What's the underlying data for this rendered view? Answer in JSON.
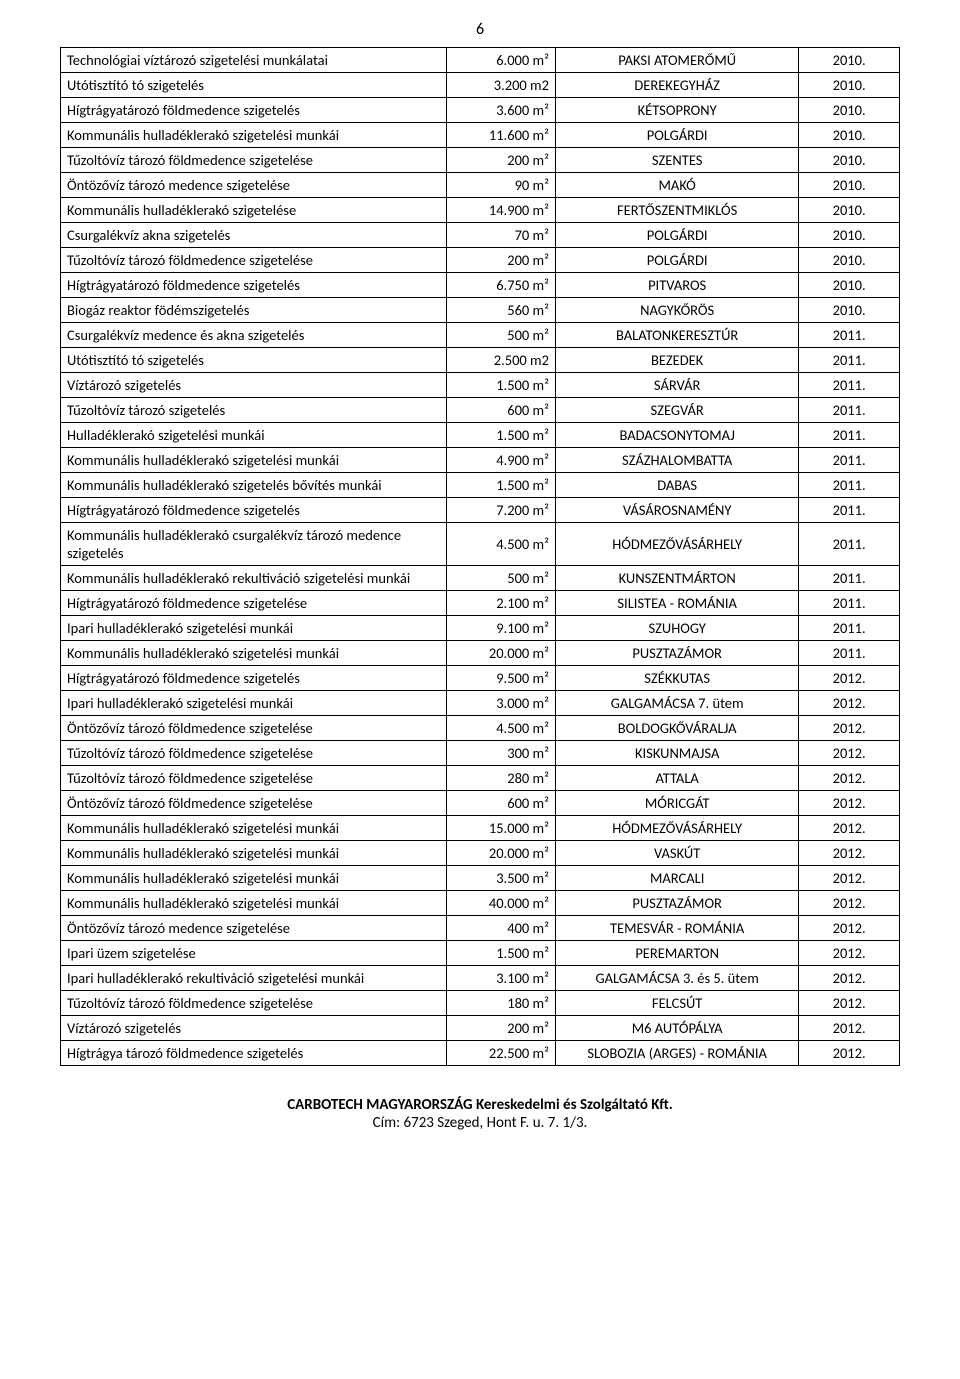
{
  "pageNumber": "6",
  "footer": {
    "line1": "CARBOTECH MAGYARORSZÁG Kereskedelmi és Szolgáltató Kft.",
    "line2": "Cím: 6723 Szeged, Hont F. u. 7. 1/3."
  },
  "rows": [
    {
      "desc": "Technológiai víztározó szigetelési munkálatai",
      "area": "6.000 m²",
      "loc": "PAKSI ATOMERŐMŰ",
      "year": "2010."
    },
    {
      "desc": "Utótisztító tó szigetelés",
      "area": "3.200 m2",
      "loc": "DEREKEGYHÁZ",
      "year": "2010."
    },
    {
      "desc": "Hígtrágyatározó földmedence szigetelés",
      "area": "3.600 m²",
      "loc": "KÉTSOPRONY",
      "year": "2010."
    },
    {
      "desc": "Kommunális hulladéklerakó szigetelési munkái",
      "area": "11.600 m²",
      "loc": "POLGÁRDI",
      "year": "2010."
    },
    {
      "desc": "Tűzoltóvíz tározó földmedence szigetelése",
      "area": "200 m²",
      "loc": "SZENTES",
      "year": "2010."
    },
    {
      "desc": "Öntözővíz tározó medence szigetelése",
      "area": "90 m²",
      "loc": "MAKÓ",
      "year": "2010."
    },
    {
      "desc": "Kommunális hulladéklerakó szigetelése",
      "area": "14.900 m²",
      "loc": "FERTŐSZENTMIKLÓS",
      "year": "2010."
    },
    {
      "desc": "Csurgalékvíz akna szigetelés",
      "area": "70 m²",
      "loc": "POLGÁRDI",
      "year": "2010."
    },
    {
      "desc": "Tűzoltóvíz tározó földmedence szigetelése",
      "area": "200 m²",
      "loc": "POLGÁRDI",
      "year": "2010."
    },
    {
      "desc": "Hígtrágyatározó földmedence szigetelés",
      "area": "6.750 m²",
      "loc": "PITVAROS",
      "year": "2010."
    },
    {
      "desc": "Biogáz reaktor födémszigetelés",
      "area": "560 m²",
      "loc": "NAGYKŐRÖS",
      "year": "2010."
    },
    {
      "desc": "Csurgalékvíz medence és akna szigetelés",
      "area": "500 m²",
      "loc": "BALATONKERESZTÚR",
      "year": "2011."
    },
    {
      "desc": "Utótisztító tó szigetelés",
      "area": "2.500 m2",
      "loc": "BEZEDEK",
      "year": "2011."
    },
    {
      "desc": "Víztározó szigetelés",
      "area": "1.500 m²",
      "loc": "SÁRVÁR",
      "year": "2011."
    },
    {
      "desc": "Tűzoltóvíz tározó szigetelés",
      "area": "600 m²",
      "loc": "SZEGVÁR",
      "year": "2011."
    },
    {
      "desc": "Hulladéklerakó szigetelési munkái",
      "area": "1.500 m²",
      "loc": "BADACSONYTOMAJ",
      "year": "2011."
    },
    {
      "desc": "Kommunális hulladéklerakó szigetelési munkái",
      "area": "4.900 m²",
      "loc": "SZÁZHALOMBATTA",
      "year": "2011."
    },
    {
      "desc": "Kommunális hulladéklerakó szigetelés bővítés munkái",
      "area": "1.500 m²",
      "loc": "DABAS",
      "year": "2011."
    },
    {
      "desc": "Hígtrágyatározó földmedence szigetelés",
      "area": "7.200 m²",
      "loc": "VÁSÁROSNAMÉNY",
      "year": "2011."
    },
    {
      "desc": "Kommunális hulladéklerakó csurgalékvíz tározó medence szigetelés",
      "area": "4.500 m²",
      "loc": "HÓDMEZŐVÁSÁRHELY",
      "year": "2011."
    },
    {
      "desc": "Kommunális hulladéklerakó rekultiváció szigetelési munkái",
      "area": "500 m²",
      "loc": "KUNSZENTMÁRTON",
      "year": "2011."
    },
    {
      "desc": "Hígtrágyatározó földmedence szigetelése",
      "area": "2.100 m²",
      "loc": "SILISTEA - ROMÁNIA",
      "year": "2011."
    },
    {
      "desc": "Ipari hulladéklerakó szigetelési munkái",
      "area": "9.100 m²",
      "loc": "SZUHOGY",
      "year": "2011."
    },
    {
      "desc": "Kommunális hulladéklerakó szigetelési munkái",
      "area": "20.000 m²",
      "loc": "PUSZTAZÁMOR",
      "year": "2011."
    },
    {
      "desc": "Hígtrágyatározó földmedence szigetelés",
      "area": "9.500 m²",
      "loc": "SZÉKKUTAS",
      "year": "2012."
    },
    {
      "desc": "Ipari hulladéklerakó szigetelési munkái",
      "area": "3.000 m²",
      "loc": "GALGAMÁCSA 7. ütem",
      "year": "2012."
    },
    {
      "desc": "Öntözővíz tározó földmedence szigetelése",
      "area": "4.500 m²",
      "loc": "BOLDOGKŐVÁRALJA",
      "year": "2012."
    },
    {
      "desc": "Tűzoltóvíz tározó földmedence szigetelése",
      "area": "300 m²",
      "loc": "KISKUNMAJSA",
      "year": "2012."
    },
    {
      "desc": "Tűzoltóvíz tározó földmedence szigetelése",
      "area": "280 m²",
      "loc": "ATTALA",
      "year": "2012."
    },
    {
      "desc": "Öntözővíz tározó földmedence szigetelése",
      "area": "600 m²",
      "loc": "MÓRICGÁT",
      "year": "2012."
    },
    {
      "desc": "Kommunális hulladéklerakó szigetelési munkái",
      "area": "15.000 m²",
      "loc": "HÓDMEZŐVÁSÁRHELY",
      "year": "2012."
    },
    {
      "desc": "Kommunális hulladéklerakó szigetelési munkái",
      "area": "20.000 m²",
      "loc": "VASKÚT",
      "year": "2012."
    },
    {
      "desc": "Kommunális hulladéklerakó szigetelési munkái",
      "area": "3.500 m²",
      "loc": "MARCALI",
      "year": "2012."
    },
    {
      "desc": "Kommunális hulladéklerakó szigetelési munkái",
      "area": "40.000 m²",
      "loc": "PUSZTAZÁMOR",
      "year": "2012."
    },
    {
      "desc": "Öntözővíz tározó medence szigetelése",
      "area": "400 m²",
      "loc": "TEMESVÁR - ROMÁNIA",
      "year": "2012."
    },
    {
      "desc": "Ipari üzem szigetelése",
      "area": "1.500 m²",
      "loc": "PEREMARTON",
      "year": "2012."
    },
    {
      "desc": "Ipari hulladéklerakó rekultiváció szigetelési munkái",
      "area": "3.100 m²",
      "loc": "GALGAMÁCSA 3. és 5. ütem",
      "year": "2012."
    },
    {
      "desc": "Tűzoltóvíz tározó földmedence szigetelése",
      "area": "180 m²",
      "loc": "FELCSÚT",
      "year": "2012."
    },
    {
      "desc": "Víztározó szigetelés",
      "area": "200 m²",
      "loc": "M6 AUTÓPÁLYA",
      "year": "2012."
    },
    {
      "desc": "Hígtrágya tározó földmedence szigetelés",
      "area": "22.500 m²",
      "loc": "SLOBOZIA (ARGES) - ROMÁNIA",
      "year": "2012."
    }
  ]
}
